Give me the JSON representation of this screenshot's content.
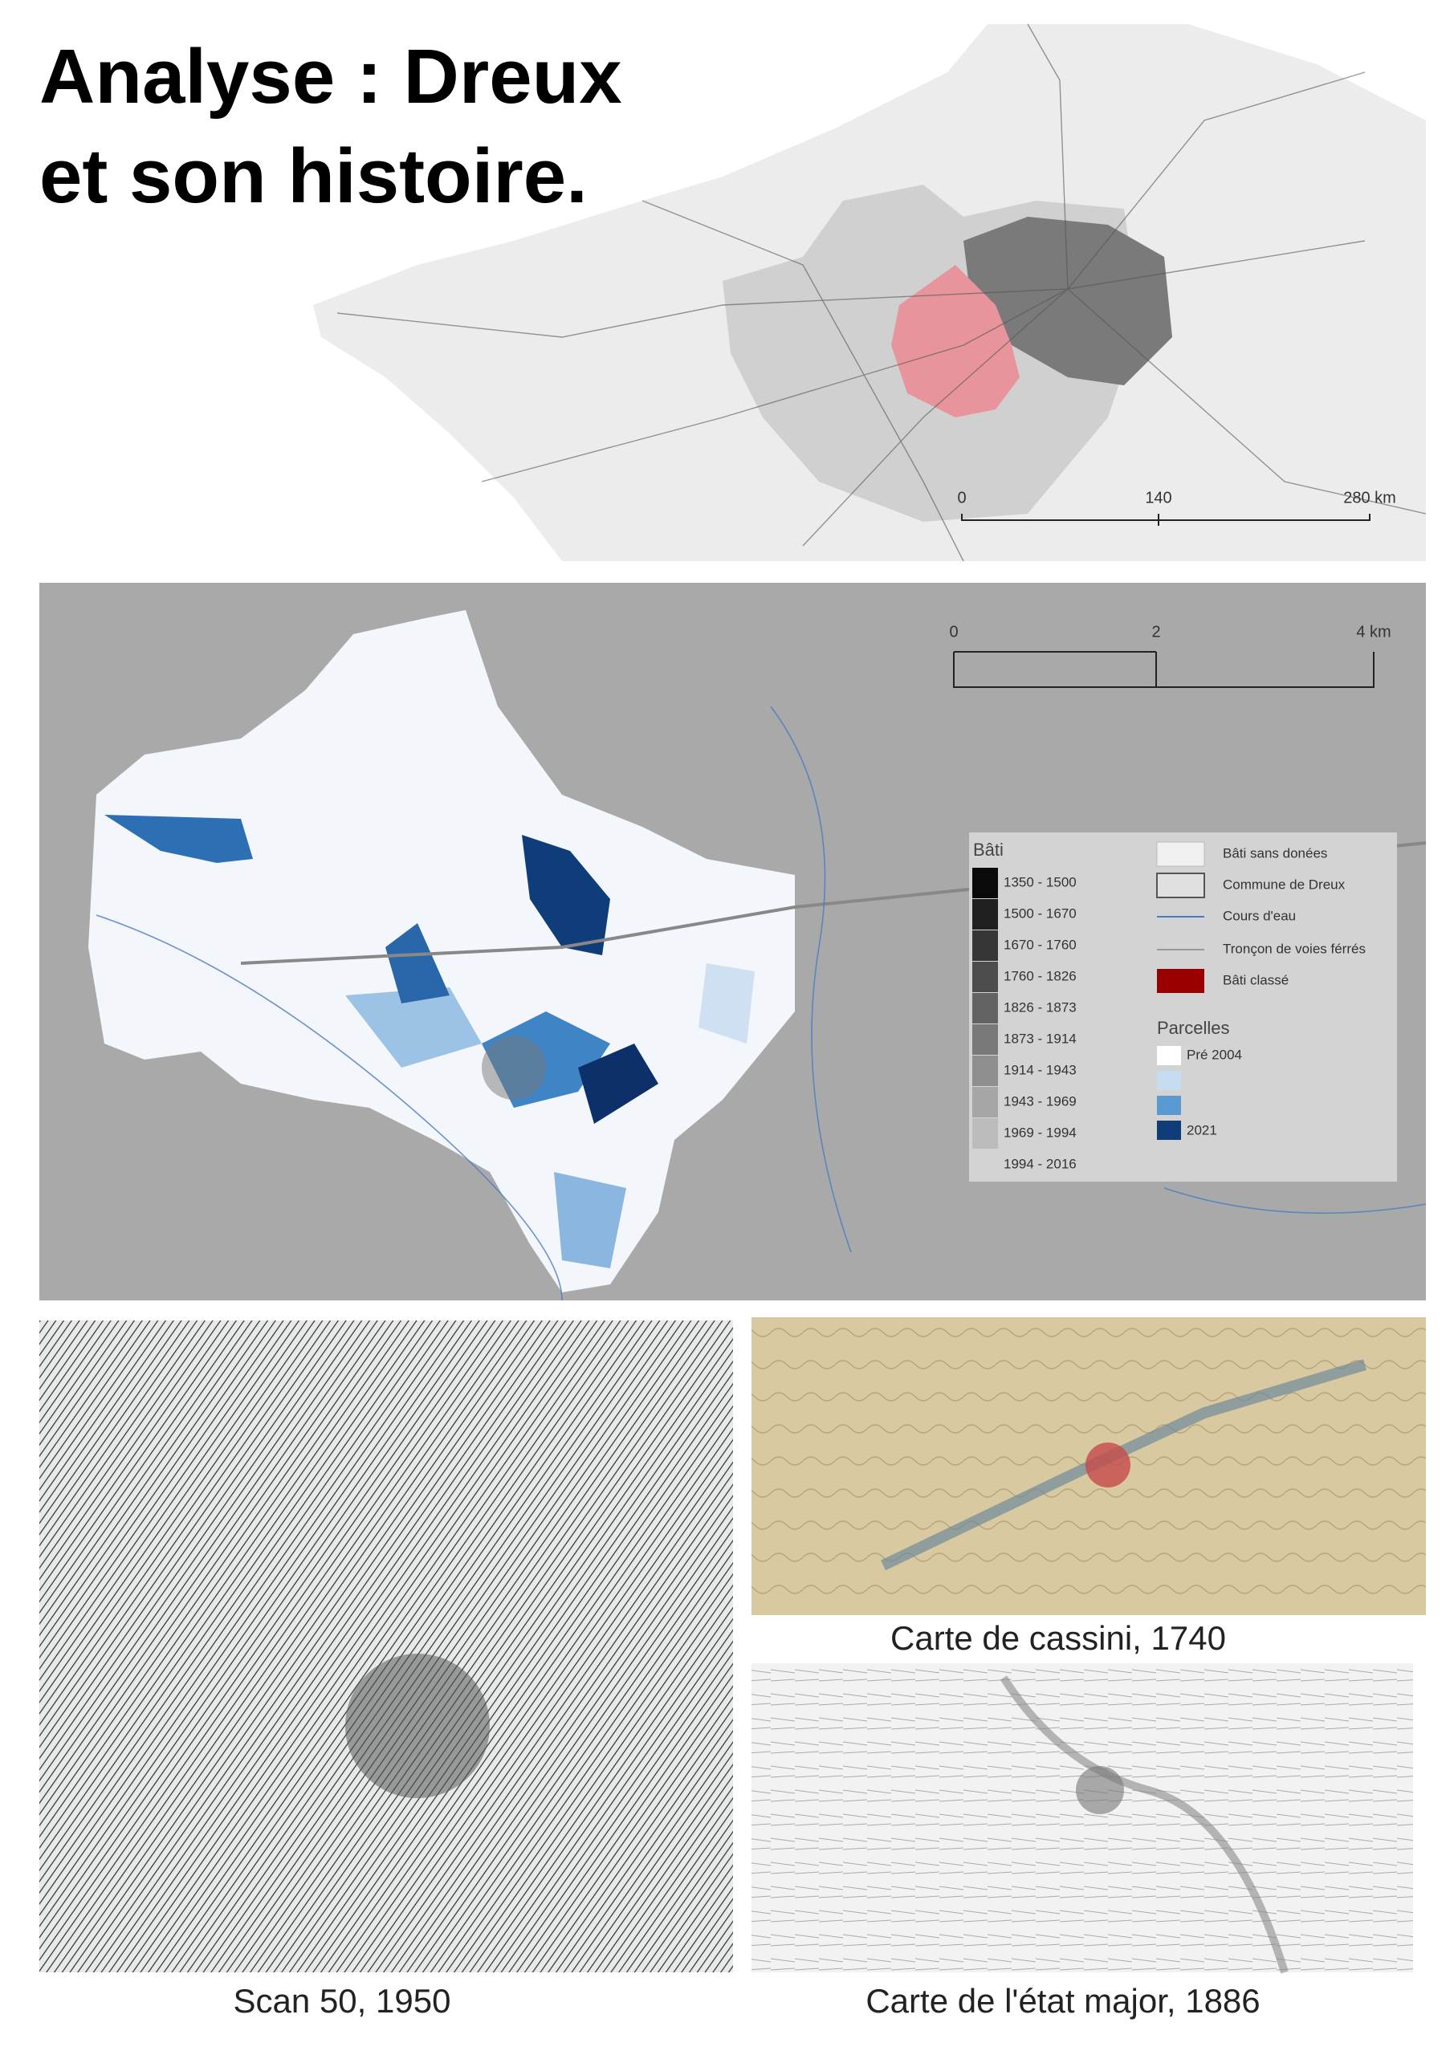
{
  "header": {
    "title_lines": [
      "Analyse : Dreux",
      "et son histoire."
    ]
  },
  "overview_map": {
    "scale_labels": [
      "0",
      "140",
      "280 km"
    ]
  },
  "town_map": {
    "scale_labels": [
      "0",
      "2",
      "4 km"
    ],
    "legend": {
      "bati_title": "Bâti",
      "periods": [
        "1350 - 1500",
        "1500 - 1670",
        "1670 - 1760",
        "1760 - 1826",
        "1826 - 1873",
        "1873 - 1914",
        "1914 - 1943",
        "1943 - 1969",
        "1969 - 1994",
        "1994 - 2016"
      ],
      "symbols": [
        "Bâti sans donées",
        "Commune de Dreux",
        "Cours d'eau",
        "Tronçon de voies férrés",
        "Bâti classé"
      ],
      "parcelles_title": "Parcelles",
      "parcelles_labels": [
        "Pré 2004",
        "2021"
      ]
    }
  },
  "historic_maps": [
    {
      "caption": "Scan 50, 1950"
    },
    {
      "caption": "Carte de cassini, 1740"
    },
    {
      "caption": "Carte de l'état major, 1886"
    }
  ]
}
